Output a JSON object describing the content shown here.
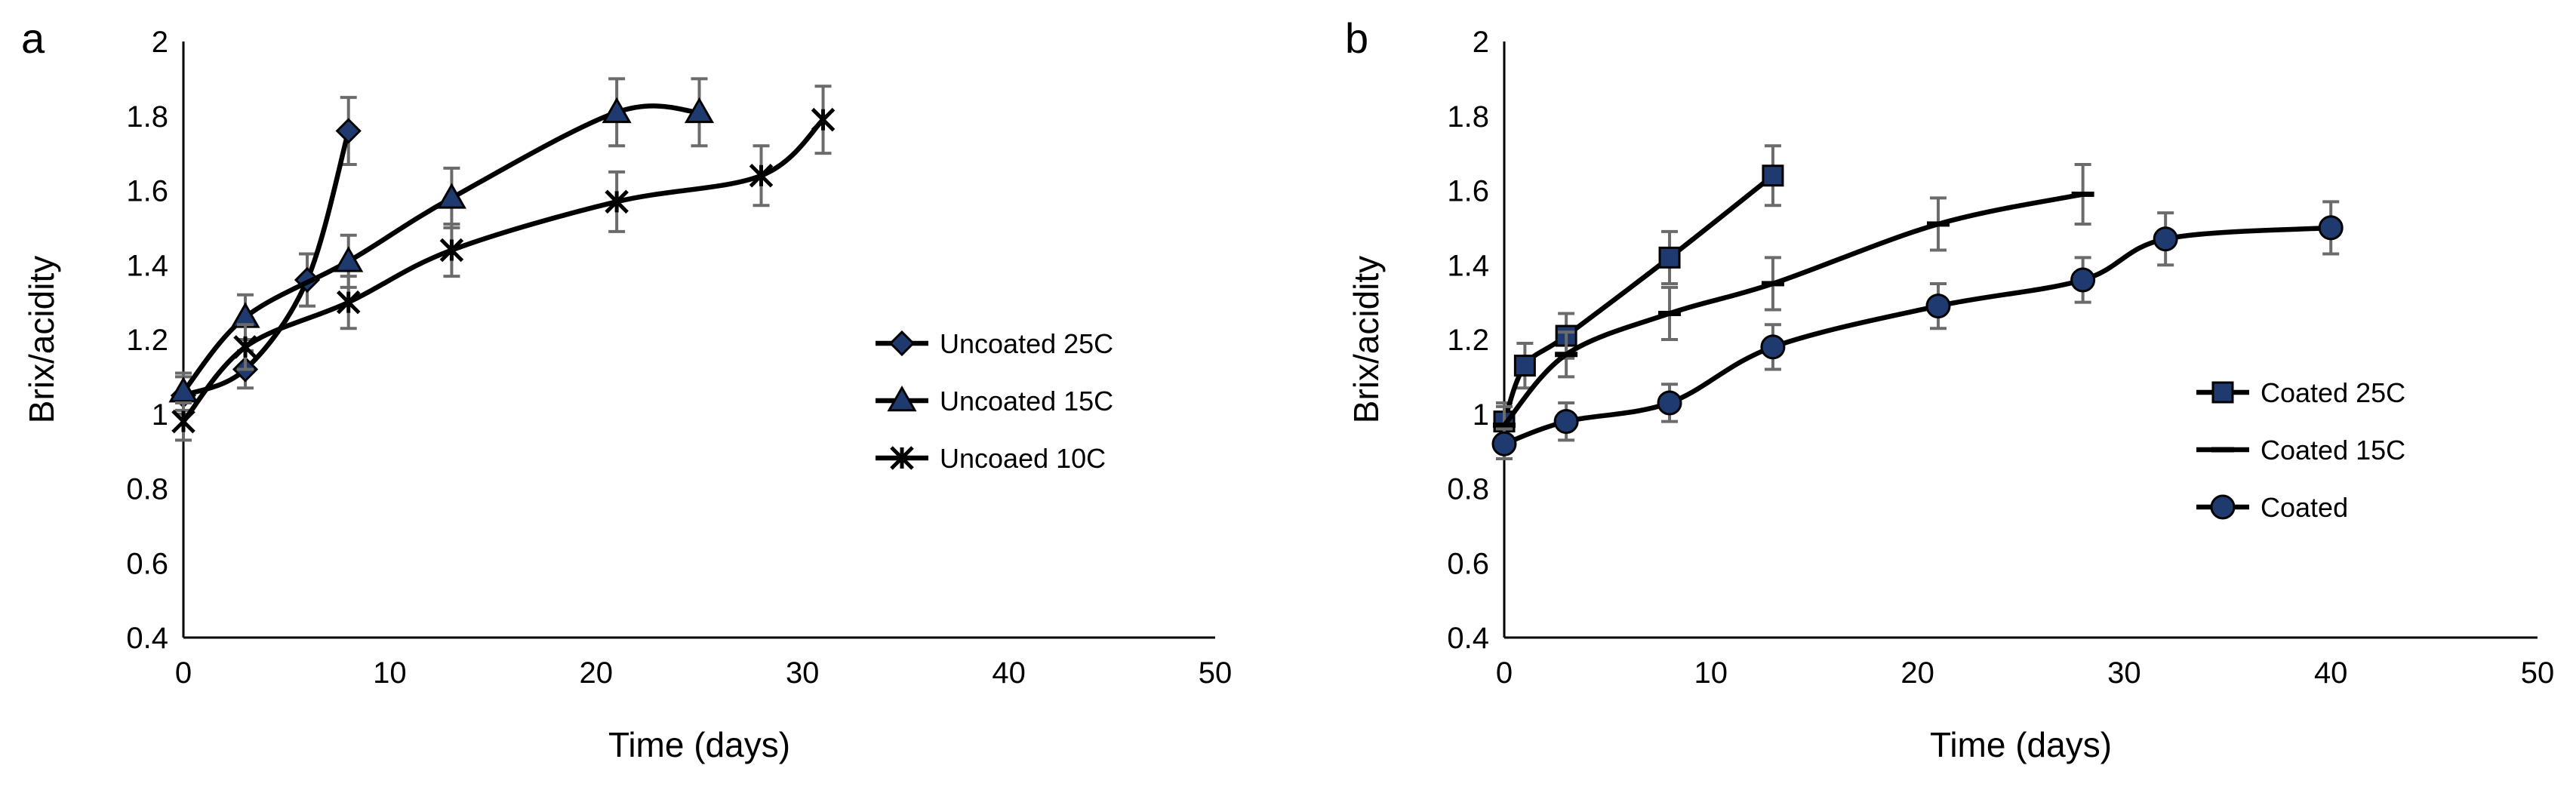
{
  "chart_data": [
    {
      "panel_label": "a",
      "type": "line",
      "xlabel": "Time (days)",
      "ylabel": "Brix/acidity",
      "xlim": [
        0,
        50
      ],
      "ylim": [
        0.4,
        2
      ],
      "x_ticks": [
        "0",
        "10",
        "20",
        "30",
        "40",
        "50"
      ],
      "y_ticks": [
        "0.4",
        "0.6",
        "0.8",
        "1",
        "1.2",
        "1.4",
        "1.6",
        "1.8",
        "2"
      ],
      "legend_position": "right",
      "series": [
        {
          "name": "Uncoated 25C",
          "marker": "diamond",
          "x": [
            0,
            3,
            6,
            8
          ],
          "y": [
            1.05,
            1.12,
            1.36,
            1.76
          ],
          "err": [
            0.05,
            0.05,
            0.07,
            0.09
          ]
        },
        {
          "name": "Uncoated 15C",
          "marker": "triangle",
          "x": [
            0,
            3,
            8,
            13,
            21,
            25
          ],
          "y": [
            1.06,
            1.26,
            1.41,
            1.58,
            1.81,
            1.81
          ],
          "err": [
            0.05,
            0.06,
            0.07,
            0.08,
            0.09,
            0.09
          ]
        },
        {
          "name": "Uncoaed 10C",
          "marker": "star",
          "x": [
            0,
            3,
            8,
            13,
            21,
            28,
            31
          ],
          "y": [
            0.98,
            1.18,
            1.3,
            1.44,
            1.57,
            1.64,
            1.79
          ],
          "err": [
            0.05,
            0.06,
            0.07,
            0.07,
            0.08,
            0.08,
            0.09
          ]
        }
      ]
    },
    {
      "panel_label": "b",
      "type": "line",
      "xlabel": "Time (days)",
      "ylabel": "Brix/acidity",
      "xlim": [
        0,
        50
      ],
      "ylim": [
        0.4,
        2
      ],
      "x_ticks": [
        "0",
        "10",
        "20",
        "30",
        "40",
        "50"
      ],
      "y_ticks": [
        "0.4",
        "0.6",
        "0.8",
        "1",
        "1.2",
        "1.4",
        "1.6",
        "1.8",
        "2"
      ],
      "legend_position": "right",
      "series": [
        {
          "name": "Coated 25C",
          "marker": "square",
          "x": [
            0,
            1,
            3,
            8,
            13
          ],
          "y": [
            0.98,
            1.13,
            1.21,
            1.42,
            1.64
          ],
          "err": [
            0.05,
            0.06,
            0.06,
            0.07,
            0.08
          ]
        },
        {
          "name": "Coated 15C",
          "marker": "dash",
          "x": [
            0,
            3,
            8,
            13,
            21,
            28
          ],
          "y": [
            0.97,
            1.16,
            1.27,
            1.35,
            1.51,
            1.59
          ],
          "err": [
            0.05,
            0.06,
            0.07,
            0.07,
            0.07,
            0.08
          ]
        },
        {
          "name": "Coated",
          "marker": "circle",
          "x": [
            0,
            3,
            8,
            13,
            21,
            28,
            32,
            40
          ],
          "y": [
            0.92,
            0.98,
            1.03,
            1.18,
            1.29,
            1.36,
            1.47,
            1.5
          ],
          "err": [
            0.04,
            0.05,
            0.05,
            0.06,
            0.06,
            0.06,
            0.07,
            0.07
          ]
        }
      ]
    }
  ]
}
